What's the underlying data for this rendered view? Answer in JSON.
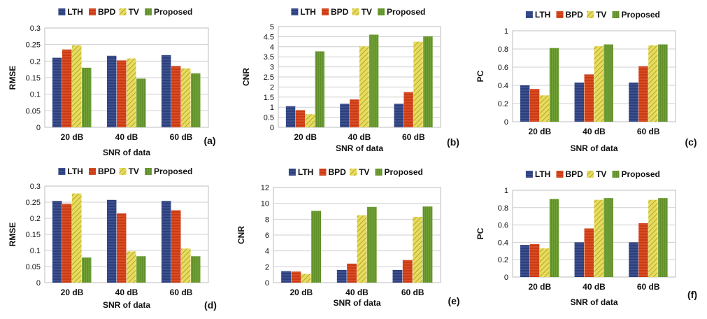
{
  "series_colors": [
    "#2b3f7f",
    "#cc3a12",
    "#d4c62c",
    "#5f8e28"
  ],
  "chart_data": [
    {
      "type": "bar",
      "panel": "(a)",
      "categories": [
        "20 dB",
        "40 dB",
        "60 dB"
      ],
      "series": [
        {
          "name": "LTH",
          "values": [
            0.21,
            0.216,
            0.218
          ]
        },
        {
          "name": "BPD",
          "values": [
            0.235,
            0.202,
            0.185
          ]
        },
        {
          "name": "TV",
          "values": [
            0.248,
            0.208,
            0.178
          ]
        },
        {
          "name": "Proposed",
          "values": [
            0.18,
            0.147,
            0.163
          ]
        }
      ],
      "xlabel": "SNR of data",
      "ylabel": "RMSE",
      "ylim": [
        0,
        0.3
      ],
      "yticks": [
        "0",
        "0.05",
        "0.1",
        "0.15",
        "0.2",
        "0.25",
        "0.3"
      ],
      "legend": "top",
      "grid": true
    },
    {
      "type": "bar",
      "panel": "(b)",
      "categories": [
        "20 dB",
        "40 dB",
        "60 dB"
      ],
      "series": [
        {
          "name": "LTH",
          "values": [
            1.05,
            1.17,
            1.17
          ]
        },
        {
          "name": "BPD",
          "values": [
            0.85,
            1.38,
            1.75
          ]
        },
        {
          "name": "TV",
          "values": [
            0.65,
            4.02,
            4.25
          ]
        },
        {
          "name": "Proposed",
          "values": [
            3.77,
            4.6,
            4.52
          ]
        }
      ],
      "xlabel": "SNR of data",
      "ylabel": "CNR",
      "ylim": [
        0,
        5
      ],
      "yticks": [
        "0",
        "0.5",
        "1",
        "1.5",
        "2",
        "2.5",
        "3",
        "3.5",
        "4",
        "4.5",
        "5"
      ],
      "legend": "top",
      "grid": true
    },
    {
      "type": "bar",
      "panel": "(c)",
      "categories": [
        "20 dB",
        "40 dB",
        "60 dB"
      ],
      "series": [
        {
          "name": "LTH",
          "values": [
            0.4,
            0.43,
            0.43
          ]
        },
        {
          "name": "BPD",
          "values": [
            0.36,
            0.52,
            0.61
          ]
        },
        {
          "name": "TV",
          "values": [
            0.29,
            0.83,
            0.84
          ]
        },
        {
          "name": "Proposed",
          "values": [
            0.81,
            0.85,
            0.85
          ]
        }
      ],
      "xlabel": "SNR of data",
      "ylabel": "PC",
      "ylim": [
        0,
        1
      ],
      "yticks": [
        "0",
        "0.2",
        "0.4",
        "0.6",
        "0.8",
        "1"
      ],
      "legend": "top",
      "grid": true
    },
    {
      "type": "bar",
      "panel": "(d)",
      "categories": [
        "20 dB",
        "40 dB",
        "60 dB"
      ],
      "series": [
        {
          "name": "LTH",
          "values": [
            0.254,
            0.257,
            0.254
          ]
        },
        {
          "name": "BPD",
          "values": [
            0.245,
            0.215,
            0.225
          ]
        },
        {
          "name": "TV",
          "values": [
            0.277,
            0.097,
            0.106
          ]
        },
        {
          "name": "Proposed",
          "values": [
            0.078,
            0.082,
            0.082
          ]
        }
      ],
      "xlabel": "SNR of data",
      "ylabel": "RMSE",
      "ylim": [
        0,
        0.3
      ],
      "yticks": [
        "0",
        "0.05",
        "0.1",
        "0.15",
        "0.2",
        "0.25",
        "0.3"
      ],
      "legend": "top",
      "grid": true
    },
    {
      "type": "bar",
      "panel": "(e)",
      "categories": [
        "20 dB",
        "40 dB",
        "60 dB"
      ],
      "series": [
        {
          "name": "LTH",
          "values": [
            1.45,
            1.6,
            1.6
          ]
        },
        {
          "name": "BPD",
          "values": [
            1.4,
            2.4,
            2.85
          ]
        },
        {
          "name": "TV",
          "values": [
            1.1,
            8.5,
            8.3
          ]
        },
        {
          "name": "Proposed",
          "values": [
            9.05,
            9.55,
            9.6
          ]
        }
      ],
      "xlabel": "SNR of data",
      "ylabel": "CNR",
      "ylim": [
        0,
        12
      ],
      "yticks": [
        "0",
        "2",
        "4",
        "6",
        "8",
        "10",
        "12"
      ],
      "legend": "top",
      "grid": true
    },
    {
      "type": "bar",
      "panel": "(f)",
      "categories": [
        "20 dB",
        "40 dB",
        "60 dB"
      ],
      "series": [
        {
          "name": "LTH",
          "values": [
            0.37,
            0.4,
            0.4
          ]
        },
        {
          "name": "BPD",
          "values": [
            0.38,
            0.56,
            0.62
          ]
        },
        {
          "name": "TV",
          "values": [
            0.33,
            0.89,
            0.89
          ]
        },
        {
          "name": "Proposed",
          "values": [
            0.9,
            0.91,
            0.91
          ]
        }
      ],
      "xlabel": "SNR of data",
      "ylabel": "PC",
      "ylim": [
        0,
        1
      ],
      "yticks": [
        "0",
        "0.2",
        "0.4",
        "0.6",
        "0.8",
        "1"
      ],
      "legend": "top",
      "grid": true
    }
  ]
}
